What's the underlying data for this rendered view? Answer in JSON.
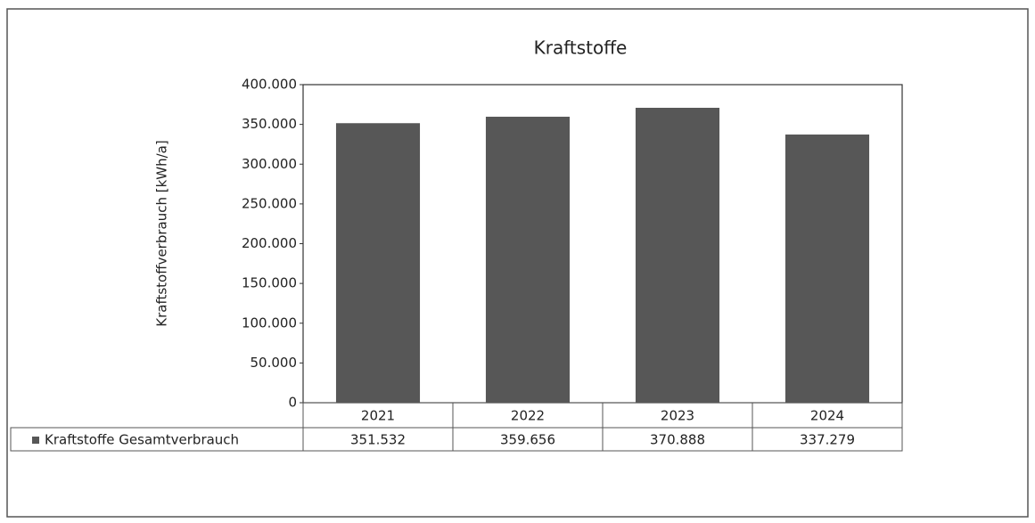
{
  "chart_data": {
    "type": "bar",
    "title": "Kraftstoffe",
    "y_label": "Kraftstoffverbrauch [kWh/a]",
    "categories": [
      "2021",
      "2022",
      "2023",
      "2024"
    ],
    "series": [
      {
        "name": "Kraftstoffe Gesamtverbrauch",
        "color": "#575757",
        "values": [
          351532,
          359656,
          370888,
          337279
        ],
        "value_labels": [
          "351.532",
          "359.656",
          "370.888",
          "337.279"
        ]
      }
    ],
    "ylim": [
      0,
      400000
    ],
    "yticks": [
      0,
      {
        "value": 50000,
        "label": "50.000"
      },
      {
        "value": 100000,
        "label": "100.000"
      },
      {
        "value": 150000,
        "label": "150.000"
      },
      {
        "value": 200000,
        "label": "200.000"
      },
      {
        "value": 250000,
        "label": "250.000"
      },
      {
        "value": 300000,
        "label": "300.000"
      },
      {
        "value": 350000,
        "label": "350.000"
      },
      {
        "value": 400000,
        "label": "400.000"
      }
    ],
    "grid": false,
    "legend": "table"
  }
}
